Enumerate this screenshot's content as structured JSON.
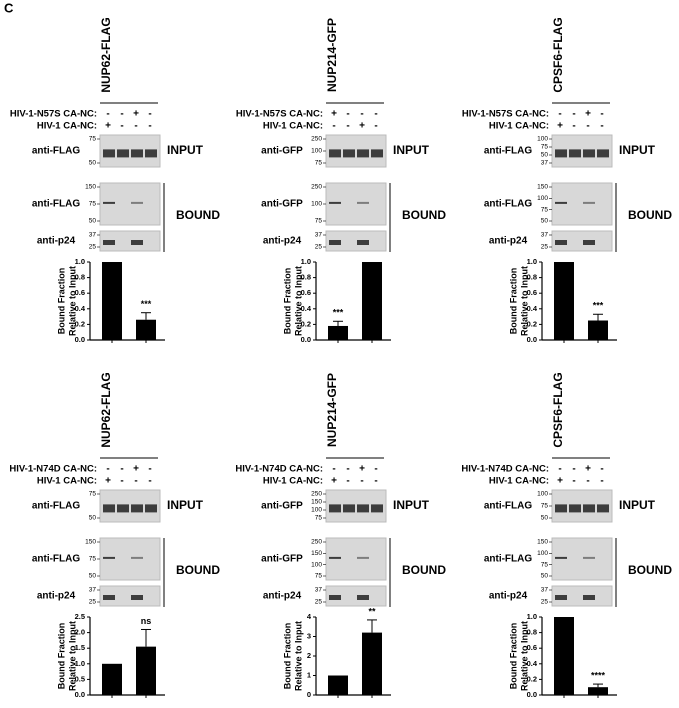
{
  "figure_label": "C",
  "panels": [
    {
      "title": "NUP62-FLAG",
      "conditions": [
        {
          "label": "HIV-1-N57S CA-NC:",
          "signs": [
            "-",
            "-",
            "+",
            "-"
          ]
        },
        {
          "label": "HIV-1 CA-NC:",
          "signs": [
            "+",
            "-",
            "-",
            "-"
          ]
        }
      ],
      "blots": [
        {
          "antibody": "anti-FLAG",
          "markers": [
            75,
            50
          ]
        },
        {
          "antibody": "anti-FLAG",
          "markers": [
            150,
            75,
            50
          ]
        },
        {
          "antibody": "anti-p24",
          "markers": [
            37,
            25
          ]
        }
      ],
      "input_label": "INPUT",
      "bound_label": "BOUND",
      "chart_data": {
        "type": "bar",
        "ylabel": [
          "Bound Fraction",
          "Relative to Input"
        ],
        "categories": [
          null,
          null
        ],
        "values": [
          1.0,
          0.26
        ],
        "errors": [
          0,
          0.09
        ],
        "annotations": [
          null,
          "***"
        ],
        "color": "#000000",
        "ylim": [
          0,
          1.0
        ],
        "yticks": [
          {
            "value": 0,
            "label": "0.0"
          },
          0.2,
          0.4,
          0.6,
          0.8,
          {
            "value": 1,
            "label": "1.0"
          }
        ]
      }
    },
    {
      "title": "NUP214-GFP",
      "conditions": [
        {
          "label": "HIV-1-N57S CA-NC:",
          "signs": [
            "+",
            "-",
            "-",
            "-"
          ]
        },
        {
          "label": "HIV-1 CA-NC:",
          "signs": [
            "-",
            "-",
            "+",
            "-"
          ]
        }
      ],
      "blots": [
        {
          "antibody": "anti-GFP",
          "markers": [
            250,
            100,
            75
          ]
        },
        {
          "antibody": "anti-GFP",
          "markers": [
            250,
            100,
            75
          ]
        },
        {
          "antibody": "anti-p24",
          "markers": [
            37,
            25
          ]
        }
      ],
      "input_label": "INPUT",
      "bound_label": "BOUND",
      "chart_data": {
        "type": "bar",
        "ylabel": [
          "Bound Fraction",
          "Relative to Input"
        ],
        "categories": [
          null,
          null
        ],
        "values": [
          0.18,
          1.0
        ],
        "errors": [
          0.06,
          0
        ],
        "annotations": [
          "***",
          null
        ],
        "color": "#000000",
        "ylim": [
          0,
          1.0
        ],
        "yticks": [
          {
            "value": 0,
            "label": "0.0"
          },
          0.2,
          0.4,
          0.6,
          0.8,
          {
            "value": 1,
            "label": "1.0"
          }
        ]
      }
    },
    {
      "title": "CPSF6-FLAG",
      "conditions": [
        {
          "label": "HIV-1-N57S CA-NC:",
          "signs": [
            "-",
            "-",
            "+",
            "-"
          ]
        },
        {
          "label": "HIV-1 CA-NC:",
          "signs": [
            "+",
            "-",
            "-",
            "-"
          ]
        }
      ],
      "blots": [
        {
          "antibody": "anti-FLAG",
          "markers": [
            100,
            75,
            50,
            37
          ]
        },
        {
          "antibody": "anti-FLAG",
          "markers": [
            150,
            100,
            75,
            50
          ]
        },
        {
          "antibody": "anti-p24",
          "markers": [
            37,
            25
          ]
        }
      ],
      "input_label": "INPUT",
      "bound_label": "BOUND",
      "chart_data": {
        "type": "bar",
        "ylabel": [
          "Bound Fraction",
          "Relative to Input"
        ],
        "categories": [
          null,
          null
        ],
        "values": [
          1.0,
          0.25
        ],
        "errors": [
          0,
          0.08
        ],
        "annotations": [
          null,
          "***"
        ],
        "color": "#000000",
        "ylim": [
          0,
          1.0
        ],
        "yticks": [
          {
            "value": 0,
            "label": "0.0"
          },
          0.2,
          0.4,
          0.6,
          0.8,
          {
            "value": 1,
            "label": "1.0"
          }
        ]
      }
    },
    {
      "title": "NUP62-FLAG",
      "conditions": [
        {
          "label": "HIV-1-N74D CA-NC:",
          "signs": [
            "-",
            "-",
            "+",
            "-"
          ]
        },
        {
          "label": "HIV-1 CA-NC:",
          "signs": [
            "+",
            "-",
            "-",
            "-"
          ]
        }
      ],
      "blots": [
        {
          "antibody": "anti-FLAG",
          "markers": [
            75,
            50
          ]
        },
        {
          "antibody": "anti-FLAG",
          "markers": [
            150,
            75,
            50
          ]
        },
        {
          "antibody": "anti-p24",
          "markers": [
            37,
            25
          ]
        }
      ],
      "input_label": "INPUT",
      "bound_label": "BOUND",
      "chart_data": {
        "type": "bar",
        "ylabel": [
          "Bound Fraction",
          "Relative to Input"
        ],
        "categories": [
          null,
          null
        ],
        "values": [
          1.0,
          1.55
        ],
        "errors": [
          0,
          0.55
        ],
        "annotations": [
          null,
          "ns"
        ],
        "color": "#000000",
        "ylim": [
          0,
          2.5
        ],
        "yticks": [
          {
            "value": 0,
            "label": "0.0"
          },
          0.5,
          {
            "value": 1,
            "label": "1.0"
          },
          1.5,
          {
            "value": 2,
            "label": "2.0"
          },
          2.5
        ]
      }
    },
    {
      "title": "NUP214-GFP",
      "conditions": [
        {
          "label": "HIV-1-N74D CA-NC:",
          "signs": [
            "-",
            "-",
            "+",
            "-"
          ]
        },
        {
          "label": "HIV-1 CA-NC:",
          "signs": [
            "+",
            "-",
            "-",
            "-"
          ]
        }
      ],
      "blots": [
        {
          "antibody": "anti-GFP",
          "markers": [
            250,
            150,
            100,
            75
          ]
        },
        {
          "antibody": "anti-GFP",
          "markers": [
            250,
            150,
            100,
            75
          ]
        },
        {
          "antibody": "anti-p24",
          "markers": [
            37,
            25
          ]
        }
      ],
      "input_label": "INPUT",
      "bound_label": "BOUND",
      "chart_data": {
        "type": "bar",
        "ylabel": [
          "Bound Fraction",
          "Relative to Input"
        ],
        "categories": [
          null,
          null
        ],
        "values": [
          1.0,
          3.2
        ],
        "errors": [
          0,
          0.65
        ],
        "annotations": [
          null,
          "**"
        ],
        "color": "#000000",
        "ylim": [
          0,
          4
        ],
        "yticks": [
          0,
          1,
          2,
          3,
          4
        ]
      }
    },
    {
      "title": "CPSF6-FLAG",
      "conditions": [
        {
          "label": "HIV-1-N74D CA-NC:",
          "signs": [
            "-",
            "-",
            "+",
            "-"
          ]
        },
        {
          "label": "HIV-1 CA-NC:",
          "signs": [
            "+",
            "-",
            "-",
            "-"
          ]
        }
      ],
      "blots": [
        {
          "antibody": "anti-FLAG",
          "markers": [
            100,
            75,
            50
          ]
        },
        {
          "antibody": "anti-FLAG",
          "markers": [
            150,
            100,
            75,
            50
          ]
        },
        {
          "antibody": "anti-p24",
          "markers": [
            37,
            25
          ]
        }
      ],
      "input_label": "INPUT",
      "bound_label": "BOUND",
      "chart_data": {
        "type": "bar",
        "ylabel": [
          "Bound Fraction",
          "Relative to Input"
        ],
        "categories": [
          null,
          null
        ],
        "values": [
          1.0,
          0.1
        ],
        "errors": [
          0,
          0.04
        ],
        "annotations": [
          null,
          "****"
        ],
        "color": "#000000",
        "ylim": [
          0,
          1.0
        ],
        "yticks": [
          {
            "value": 0,
            "label": "0.0"
          },
          0.2,
          0.4,
          0.6,
          0.8,
          {
            "value": 1,
            "label": "1.0"
          }
        ]
      }
    }
  ]
}
